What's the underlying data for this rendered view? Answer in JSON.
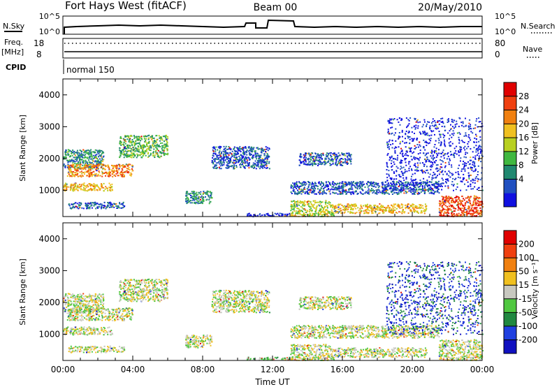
{
  "header": {
    "station": "Fort Hays West (fitACF)",
    "beam": "Beam 00",
    "date": "20/May/2010"
  },
  "status_panel": {
    "nsky_label": "N.Sky",
    "nsearch_label": "N.Search",
    "noise_ticks": [
      "10^5",
      "10^0"
    ],
    "freq_label": "Freq.",
    "freq_unit": "[MHz]",
    "freq_ticks": [
      "18",
      "8"
    ],
    "nave_label": "Nave",
    "nave_ticks": [
      "80",
      "0"
    ],
    "cpid_label": "CPID",
    "cpid_text": "normal 150"
  },
  "chart_data": [
    {
      "type": "heatmap",
      "name": "power",
      "xlabel": "",
      "ylabel": "Slant Range [km]",
      "xlim": [
        0,
        24
      ],
      "ylim": [
        180,
        4500
      ],
      "yticks": [
        1000,
        2000,
        3000,
        4000
      ],
      "colorbar": {
        "label": "Power [dB]",
        "ticks": [
          "28",
          "24",
          "20",
          "16",
          "12",
          "8",
          "4"
        ],
        "colors": [
          "#1010e0",
          "#2050c0",
          "#208870",
          "#40b840",
          "#b8d020",
          "#f0c020",
          "#f08010",
          "#f04010",
          "#e00000"
        ]
      },
      "regions": [
        {
          "start": 0.0,
          "end": 2.3,
          "from": 1700,
          "to": 2300,
          "level": 2
        },
        {
          "start": 0.2,
          "end": 4.0,
          "from": 1450,
          "to": 1850,
          "level": 6
        },
        {
          "start": 0.0,
          "end": 2.8,
          "from": 1000,
          "to": 1250,
          "level": 5
        },
        {
          "start": 0.3,
          "end": 3.5,
          "from": 450,
          "to": 650,
          "level": 1
        },
        {
          "start": 3.2,
          "end": 6.0,
          "from": 2050,
          "to": 2750,
          "level": 3
        },
        {
          "start": 7.0,
          "end": 8.5,
          "from": 600,
          "to": 1000,
          "level": 2
        },
        {
          "start": 8.5,
          "end": 11.8,
          "from": 1700,
          "to": 2400,
          "level": 1
        },
        {
          "start": 10.5,
          "end": 13.0,
          "from": 200,
          "to": 300,
          "level": 0
        },
        {
          "start": 13.0,
          "end": 15.5,
          "from": 200,
          "to": 700,
          "level": 4
        },
        {
          "start": 15.5,
          "end": 20.8,
          "from": 300,
          "to": 600,
          "level": 5
        },
        {
          "start": 13.0,
          "end": 21.5,
          "from": 900,
          "to": 1300,
          "level": 1
        },
        {
          "start": 13.5,
          "end": 16.5,
          "from": 1800,
          "to": 2200,
          "level": 1
        },
        {
          "start": 18.5,
          "end": 24.0,
          "from": 1000,
          "to": 3300,
          "level": 0
        },
        {
          "start": 21.5,
          "end": 24.0,
          "from": 200,
          "to": 850,
          "level": 7
        }
      ]
    },
    {
      "type": "heatmap",
      "name": "velocity",
      "xlabel": "Time UT",
      "ylabel": "Slant Range [km]",
      "xlim": [
        0,
        24
      ],
      "ylim": [
        180,
        4500
      ],
      "yticks": [
        1000,
        2000,
        3000,
        4000
      ],
      "xticks": [
        "00:00",
        "04:00",
        "08:00",
        "12:00",
        "16:00",
        "20:00",
        "00:00"
      ],
      "colorbar": {
        "label": "Velocity [m s⁻¹]",
        "ticks": [
          "200",
          "100",
          "50",
          "15",
          "-15",
          "-50",
          "-100",
          "-200"
        ],
        "colors": [
          "#1010c0",
          "#2040e0",
          "#208840",
          "#50c840",
          "#c8c8c0",
          "#f0c020",
          "#f08010",
          "#f04010",
          "#e00000"
        ]
      },
      "regions": [
        {
          "start": 0.0,
          "end": 2.3,
          "from": 1700,
          "to": 2300,
          "level": 4
        },
        {
          "start": 0.2,
          "end": 4.0,
          "from": 1450,
          "to": 1850,
          "level": 4
        },
        {
          "start": 0.0,
          "end": 2.8,
          "from": 1000,
          "to": 1250,
          "level": 4
        },
        {
          "start": 0.3,
          "end": 3.5,
          "from": 450,
          "to": 650,
          "level": 4
        },
        {
          "start": 3.2,
          "end": 6.0,
          "from": 2050,
          "to": 2750,
          "level": 4
        },
        {
          "start": 7.0,
          "end": 8.5,
          "from": 600,
          "to": 1000,
          "level": 4
        },
        {
          "start": 8.5,
          "end": 11.8,
          "from": 1700,
          "to": 2400,
          "level": 4
        },
        {
          "start": 10.5,
          "end": 13.0,
          "from": 200,
          "to": 300,
          "level": 3
        },
        {
          "start": 13.0,
          "end": 15.5,
          "from": 200,
          "to": 700,
          "level": 4
        },
        {
          "start": 15.5,
          "end": 20.8,
          "from": 300,
          "to": 600,
          "level": 4
        },
        {
          "start": 13.0,
          "end": 21.5,
          "from": 900,
          "to": 1300,
          "level": 4
        },
        {
          "start": 13.5,
          "end": 16.5,
          "from": 1800,
          "to": 2200,
          "level": 4
        },
        {
          "start": 18.5,
          "end": 24.0,
          "from": 1000,
          "to": 3300,
          "level": 1
        },
        {
          "start": 21.5,
          "end": 24.0,
          "from": 200,
          "to": 850,
          "level": 4
        }
      ]
    }
  ]
}
